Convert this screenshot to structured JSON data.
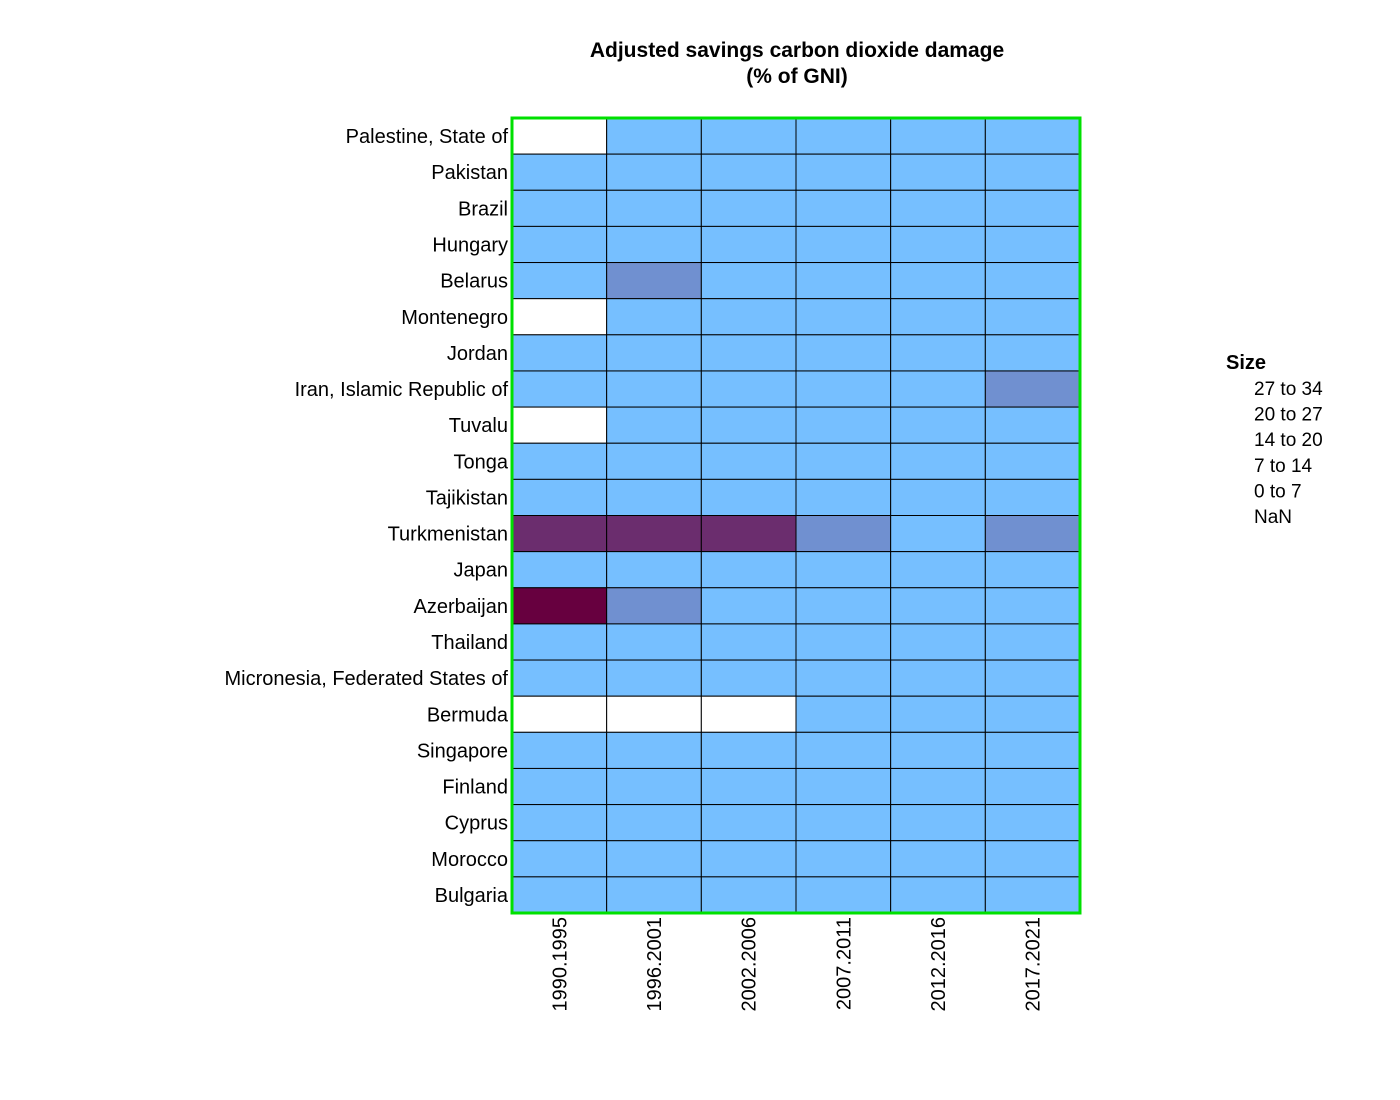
{
  "chart_data": {
    "type": "heatmap",
    "title": "Adjusted savings carbon dioxide damage",
    "subtitle": "(% of GNI)",
    "columns": [
      "1990.1995",
      "1996.2001",
      "2002.2006",
      "2007.2011",
      "2012.2016",
      "2017.2021"
    ],
    "rows": [
      "Palestine, State of",
      "Pakistan",
      "Brazil",
      "Hungary",
      "Belarus",
      "Montenegro",
      "Jordan",
      "Iran, Islamic Republic of",
      "Tuvalu",
      "Tonga",
      "Tajikistan",
      "Turkmenistan",
      "Japan",
      "Azerbaijan",
      "Thailand",
      "Micronesia, Federated States of",
      "Bermuda",
      "Singapore",
      "Finland",
      "Cyprus",
      "Morocco",
      "Bulgaria"
    ],
    "values": [
      [
        null,
        1,
        1,
        1,
        1,
        1
      ],
      [
        1,
        1,
        1,
        1,
        1,
        1
      ],
      [
        1,
        1,
        1,
        1,
        1,
        1
      ],
      [
        1,
        1,
        1,
        1,
        1,
        1
      ],
      [
        4,
        8,
        4,
        3,
        2,
        2
      ],
      [
        null,
        1,
        1,
        1,
        1,
        1
      ],
      [
        2,
        2,
        2,
        2,
        1,
        1
      ],
      [
        3,
        3,
        3,
        4,
        4,
        8
      ],
      [
        null,
        0,
        0,
        0,
        0,
        0
      ],
      [
        1,
        1,
        1,
        1,
        1,
        1
      ],
      [
        2,
        1,
        1,
        1,
        1,
        1
      ],
      [
        22,
        26,
        21,
        10,
        6,
        9
      ],
      [
        1,
        1,
        1,
        1,
        1,
        1
      ],
      [
        32,
        12,
        6,
        2,
        2,
        2
      ],
      [
        1,
        1,
        1,
        1,
        1,
        1
      ],
      [
        1,
        1,
        1,
        1,
        1,
        1
      ],
      [
        null,
        null,
        null,
        1,
        1,
        1
      ],
      [
        1,
        1,
        1,
        1,
        1,
        1
      ],
      [
        1,
        1,
        1,
        1,
        1,
        1
      ],
      [
        1,
        1,
        1,
        1,
        1,
        1
      ],
      [
        1,
        1,
        1,
        1,
        1,
        1
      ],
      [
        4,
        4,
        3,
        3,
        2,
        2
      ]
    ],
    "legend": {
      "title": "Size",
      "position": "right",
      "items": [
        {
          "label": "27  to  34",
          "color": "#67003f"
        },
        {
          "label": "20  to  27",
          "color": "#6b2d6e"
        },
        {
          "label": "14  to  20",
          "color": "#6e5ba0"
        },
        {
          "label": "7  to  14",
          "color": "#7090d0"
        },
        {
          "label": "0  to  7",
          "color": "#76bfff"
        },
        {
          "label": "NaN",
          "color": "#ffffff"
        }
      ]
    },
    "colors": {
      "nan": "#ffffff",
      "grid_line": "#000000",
      "frame": "#00e000"
    }
  }
}
